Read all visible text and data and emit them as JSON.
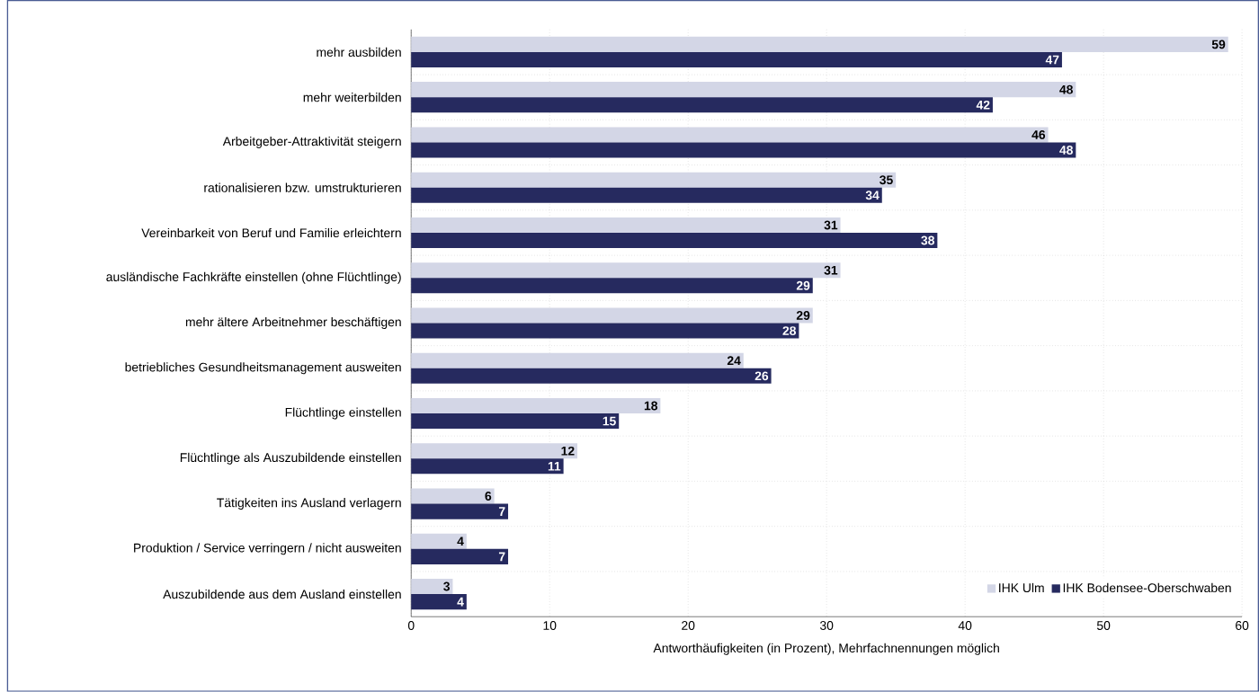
{
  "chart_data": {
    "type": "bar",
    "orientation": "horizontal",
    "categories": [
      "mehr ausbilden",
      "mehr weiterbilden",
      "Arbeitgeber-Attraktivität steigern",
      "rationalisieren bzw. umstrukturieren",
      "Vereinbarkeit von Beruf und Familie erleichtern",
      "ausländische Fachkräfte einstellen (ohne Flüchtlinge)",
      "mehr ältere Arbeitnehmer beschäftigen",
      "betriebliches Gesundheitsmanagement ausweiten",
      "Flüchtlinge einstellen",
      "Flüchtlinge als Auszubildende einstellen",
      "Tätigkeiten ins Ausland verlagern",
      "Produktion / Service verringern / nicht ausweiten",
      "Auszubildende aus dem Ausland einstellen"
    ],
    "series": [
      {
        "name": "IHK Ulm",
        "color": "#d3d6e6",
        "values": [
          59,
          48,
          46,
          35,
          31,
          31,
          29,
          24,
          18,
          12,
          6,
          4,
          3
        ],
        "value_labels": [
          "59",
          "48",
          "46",
          "35",
          "31",
          "31",
          "29",
          "24",
          "18",
          "12",
          "6",
          "4",
          "3"
        ]
      },
      {
        "name": "IHK Bodensee-Oberschwaben",
        "color": "#262a5f",
        "values": [
          47,
          42,
          48,
          34,
          38,
          29,
          28,
          26,
          15,
          11,
          7,
          7,
          4
        ],
        "value_labels": [
          "47",
          "42",
          "48",
          "34",
          "38",
          "29",
          "28",
          "26",
          "15",
          "11",
          "7",
          "7",
          "4"
        ]
      }
    ],
    "xlabel": "Antworthäufigkeiten (in Prozent), Mehrfachnennungen möglich",
    "xlim": [
      0,
      60
    ],
    "xticks": [
      0,
      10,
      20,
      30,
      40,
      50,
      60
    ],
    "grid": true,
    "legend": "bottom right"
  }
}
